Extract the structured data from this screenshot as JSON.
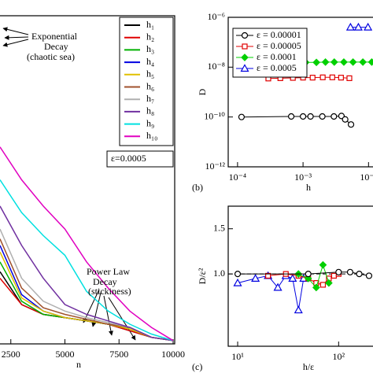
{
  "chart_data": [
    {
      "type": "line",
      "xlabel": "n",
      "x": [
        2000,
        3000,
        4000,
        5000,
        6000,
        7000,
        8000,
        9000,
        10000
      ],
      "xlim": [
        2000,
        10000
      ],
      "ylim": [
        0,
        1
      ],
      "xticks": [
        2500,
        5000,
        7500,
        10000
      ],
      "legend": "upper right",
      "series": [
        {
          "name": "h₁",
          "color": "#000000",
          "values": [
            0.22,
            0.12,
            0.09,
            0.08,
            0.07,
            0.06,
            0.04,
            0.02,
            0.01
          ]
        },
        {
          "name": "h₂",
          "color": "#e00000",
          "values": [
            0.2,
            0.12,
            0.09,
            0.08,
            0.07,
            0.06,
            0.04,
            0.02,
            0.01
          ]
        },
        {
          "name": "h₃",
          "color": "#00b000",
          "values": [
            0.25,
            0.13,
            0.09,
            0.08,
            0.07,
            0.06,
            0.045,
            0.02,
            0.01
          ]
        },
        {
          "name": "h₄",
          "color": "#0000e0",
          "values": [
            0.3,
            0.15,
            0.1,
            0.08,
            0.07,
            0.06,
            0.05,
            0.02,
            0.01
          ]
        },
        {
          "name": "h₅",
          "color": "#e0c000",
          "values": [
            0.28,
            0.14,
            0.1,
            0.08,
            0.07,
            0.06,
            0.045,
            0.02,
            0.01
          ]
        },
        {
          "name": "h₆",
          "color": "#a0522d",
          "values": [
            0.32,
            0.17,
            0.11,
            0.09,
            0.075,
            0.06,
            0.05,
            0.02,
            0.01
          ]
        },
        {
          "name": "h₇",
          "color": "#b0b0b0",
          "values": [
            0.35,
            0.2,
            0.13,
            0.1,
            0.08,
            0.065,
            0.05,
            0.02,
            0.01
          ]
        },
        {
          "name": "h₈",
          "color": "#7030a0",
          "values": [
            0.42,
            0.3,
            0.2,
            0.12,
            0.09,
            0.07,
            0.05,
            0.02,
            0.01
          ]
        },
        {
          "name": "h₉",
          "color": "#00e0e0",
          "values": [
            0.5,
            0.4,
            0.33,
            0.27,
            0.16,
            0.1,
            0.06,
            0.03,
            0.01
          ]
        },
        {
          "name": "h₁₀",
          "color": "#e000c0",
          "values": [
            0.6,
            0.5,
            0.42,
            0.35,
            0.25,
            0.17,
            0.1,
            0.05,
            0.01
          ]
        }
      ],
      "annotations": [
        "Exponential",
        "Decay",
        "(chaotic sea)",
        "Power Law",
        "Decay",
        "(stickiness)",
        "ε=0.0005"
      ]
    },
    {
      "type": "line",
      "panel": "(b)",
      "xlabel": "h",
      "ylabel": "D",
      "xscale": "log",
      "yscale": "log",
      "xlim": [
        7.2e-05,
        0.0117
      ],
      "ylim": [
        1e-12,
        1e-06
      ],
      "xticks": [
        {
          "value": 0.0001,
          "label": "10⁻⁴"
        },
        {
          "value": 0.001,
          "label": "10⁻³"
        },
        {
          "value": 0.01,
          "label": "10⁻²"
        }
      ],
      "yticks": [
        {
          "value": 1e-12,
          "label": "10⁻¹²"
        },
        {
          "value": 1e-10,
          "label": "10⁻¹⁰"
        },
        {
          "value": 1e-08,
          "label": "10⁻⁸"
        },
        {
          "value": 1e-06,
          "label": "10⁻⁶"
        }
      ],
      "legend": "upper left",
      "series": [
        {
          "name": "ε = 0.00001",
          "color": "#000000",
          "marker": "circle",
          "x": [
            0.000115,
            0.00066,
            0.001,
            0.0013,
            0.00197,
            0.00296,
            0.00386,
            0.0044,
            0.0054
          ],
          "values": [
            1e-10,
            1.05e-10,
            1.05e-10,
            1.05e-10,
            1.05e-10,
            1.05e-10,
            1.1e-10,
            8e-11,
            5e-11
          ]
        },
        {
          "name": "ε = 0.00005",
          "color": "#e00000",
          "marker": "square",
          "x": [
            0.000295,
            0.00045,
            0.0007,
            0.001,
            0.0014,
            0.002,
            0.0028,
            0.0038,
            0.0051
          ],
          "values": [
            3.5e-09,
            3.6e-09,
            3.7e-09,
            3.8e-09,
            3.8e-09,
            3.9e-09,
            3.9e-09,
            3.8e-09,
            3.6e-09
          ]
        },
        {
          "name": "ε = 0.0001",
          "color": "#00d000",
          "marker": "diamond",
          "x": [
            0.00058,
            0.0008,
            0.0011,
            0.0016,
            0.0022,
            0.003,
            0.0042,
            0.0058,
            0.0082,
            0.0112
          ],
          "values": [
            1.5e-08,
            1.5e-08,
            1.55e-08,
            1.55e-08,
            1.6e-08,
            1.6e-08,
            1.6e-08,
            1.6e-08,
            1.6e-08,
            1.6e-08
          ]
        },
        {
          "name": "ε = 0.0005",
          "color": "#0000e0",
          "marker": "triangle",
          "x": [
            0.0053,
            0.007,
            0.0098
          ],
          "values": [
            4e-07,
            4e-07,
            4e-07
          ]
        }
      ]
    },
    {
      "type": "line",
      "panel": "(c)",
      "xlabel": "h/ε",
      "ylabel": "D/ε²",
      "xscale": "log",
      "xlim": [
        8.06,
        219
      ],
      "ylim": [
        0.2,
        1.75
      ],
      "xticks": [
        {
          "value": 10,
          "label": "10¹"
        },
        {
          "value": 100,
          "label": "10²"
        }
      ],
      "yticks": [
        {
          "value": 1,
          "label": "1.0"
        },
        {
          "value": 1.5,
          "label": "1.5"
        }
      ],
      "reference_line": 1,
      "series": [
        {
          "color": "#0000e0",
          "marker": "triangle",
          "x": [
            10,
            15,
            20,
            25,
            30,
            35,
            40,
            45
          ],
          "values": [
            0.9,
            0.95,
            0.98,
            0.85,
            0.98,
            0.95,
            0.6,
            0.95
          ]
        },
        {
          "color": "#e00000",
          "marker": "square",
          "x": [
            20,
            30,
            40,
            50,
            60,
            70,
            80,
            90,
            100
          ],
          "values": [
            0.98,
            1.0,
            0.98,
            0.95,
            0.9,
            0.88,
            0.95,
            0.98,
            1.0
          ]
        },
        {
          "color": "#00d000",
          "marker": "diamond",
          "x": [
            40,
            50,
            60,
            70,
            80
          ],
          "values": [
            1.0,
            0.95,
            0.85,
            1.1,
            0.9
          ]
        },
        {
          "color": "#000000",
          "marker": "circle",
          "x": [
            10,
            50,
            100,
            130,
            160,
            200
          ],
          "values": [
            1.0,
            1.0,
            1.02,
            1.02,
            1.0,
            0.98
          ]
        }
      ]
    }
  ]
}
